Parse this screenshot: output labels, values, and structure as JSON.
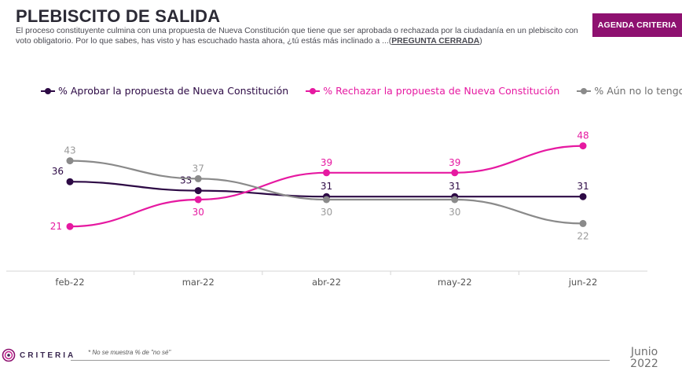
{
  "header": {
    "title": "PLEBISCITO DE SALIDA",
    "subtitle_main": "El proceso constituyente culmina con una propuesta de Nueva Constitución que tiene que ser aprobada o rechazada por la ciudadanía en un plebiscito con voto obligatorio. Por lo que sabes, has visto y has escuchado hasta ahora, ¿tú estás más inclinado a ...(",
    "subtitle_bold": "PREGUNTA CERRADA",
    "subtitle_end": ")",
    "badge": "AGENDA CRITERIA"
  },
  "chart_data": {
    "type": "line",
    "categories": [
      "feb-22",
      "mar-22",
      "abr-22",
      "may-22",
      "jun-22"
    ],
    "series": [
      {
        "name": "% Aprobar la propuesta de Nueva Constitución",
        "color": "#2d0a45",
        "values": [
          36,
          33,
          31,
          31,
          31
        ]
      },
      {
        "name": "% Rechazar la propuesta de Nueva Constitución",
        "color": "#e619a1",
        "values": [
          21,
          30,
          39,
          39,
          48
        ]
      },
      {
        "name": "% Aún no lo tengo claro",
        "color": "#8a8a8a",
        "values": [
          43,
          37,
          30,
          30,
          22
        ]
      }
    ],
    "ylim": [
      0,
      100
    ],
    "grid": false,
    "legend_position": "top"
  },
  "footer": {
    "logo_text": "CRITERIA",
    "footnote": "* No se muestra % de \"no sé\"",
    "date_month": "Junio",
    "date_year": "2022"
  }
}
